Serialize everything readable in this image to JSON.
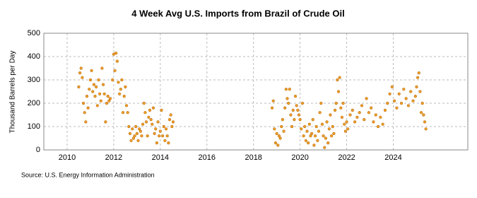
{
  "chart_data": {
    "type": "scatter",
    "title": "4 Week Avg U.S. Imports from Brazil of Crude Oil",
    "y_label": "Thousand Barrels per Day",
    "source": "Source: U.S. Energy Information Administration",
    "color": "#f0a030",
    "grid": true,
    "xlim": [
      2009,
      2027.2
    ],
    "xticks": [
      2010,
      2012,
      2014,
      2016,
      2018,
      2020,
      2022,
      2024
    ],
    "ylim": [
      0,
      500
    ],
    "yticks": [
      0,
      100,
      200,
      300,
      400,
      500
    ],
    "x": [
      2010.5,
      2010.55,
      2010.6,
      2010.65,
      2010.7,
      2010.75,
      2010.8,
      2010.85,
      2010.9,
      2010.95,
      2011.0,
      2011.05,
      2011.1,
      2011.15,
      2011.2,
      2011.25,
      2011.3,
      2011.35,
      2011.4,
      2011.45,
      2011.5,
      2011.55,
      2011.6,
      2011.65,
      2011.7,
      2011.75,
      2011.8,
      2011.85,
      2011.95,
      2012.0,
      2012.05,
      2012.1,
      2012.15,
      2012.2,
      2012.25,
      2012.3,
      2012.35,
      2012.4,
      2012.45,
      2012.5,
      2012.55,
      2012.6,
      2012.65,
      2012.7,
      2012.75,
      2012.8,
      2012.85,
      2012.9,
      2012.95,
      2013.0,
      2013.05,
      2013.1,
      2013.15,
      2013.2,
      2013.25,
      2013.3,
      2013.35,
      2013.4,
      2013.45,
      2013.5,
      2013.55,
      2013.6,
      2013.65,
      2013.7,
      2013.75,
      2013.8,
      2013.85,
      2013.9,
      2013.95,
      2014.0,
      2014.05,
      2014.1,
      2014.15,
      2014.2,
      2014.25,
      2014.3,
      2014.35,
      2014.4,
      2014.45,
      2014.5,
      2014.55,
      2018.8,
      2018.85,
      2018.9,
      2018.95,
      2019.0,
      2019.05,
      2019.1,
      2019.15,
      2019.2,
      2019.25,
      2019.3,
      2019.35,
      2019.4,
      2019.45,
      2019.5,
      2019.55,
      2019.6,
      2019.65,
      2019.7,
      2019.75,
      2019.8,
      2019.85,
      2019.9,
      2019.95,
      2020.0,
      2020.05,
      2020.1,
      2020.15,
      2020.2,
      2020.25,
      2020.3,
      2020.35,
      2020.4,
      2020.45,
      2020.5,
      2020.55,
      2020.6,
      2020.65,
      2020.7,
      2020.75,
      2020.8,
      2020.85,
      2020.9,
      2020.95,
      2021.0,
      2021.05,
      2021.1,
      2021.15,
      2021.2,
      2021.25,
      2021.3,
      2021.35,
      2021.4,
      2021.45,
      2021.5,
      2021.55,
      2021.6,
      2021.65,
      2021.7,
      2021.75,
      2021.8,
      2021.85,
      2021.9,
      2021.95,
      2022.0,
      2022.05,
      2022.15,
      2022.25,
      2022.35,
      2022.45,
      2022.55,
      2022.65,
      2022.75,
      2022.85,
      2022.95,
      2023.05,
      2023.15,
      2023.25,
      2023.35,
      2023.45,
      2023.55,
      2023.65,
      2023.75,
      2023.85,
      2023.95,
      2024.05,
      2024.15,
      2024.25,
      2024.35,
      2024.45,
      2024.55,
      2024.65,
      2024.75,
      2024.85,
      2024.95,
      2025.0,
      2025.05,
      2025.1,
      2025.15,
      2025.2,
      2025.25,
      2025.3,
      2025.35,
      2025.4
    ],
    "values": [
      270,
      330,
      350,
      310,
      200,
      160,
      120,
      230,
      180,
      260,
      300,
      340,
      250,
      280,
      230,
      270,
      190,
      300,
      240,
      210,
      350,
      280,
      240,
      120,
      200,
      230,
      210,
      220,
      300,
      410,
      340,
      415,
      380,
      290,
      240,
      260,
      300,
      160,
      230,
      270,
      190,
      160,
      100,
      70,
      40,
      90,
      50,
      60,
      100,
      70,
      40,
      90,
      80,
      60,
      110,
      200,
      160,
      120,
      60,
      140,
      170,
      130,
      110,
      180,
      70,
      90,
      30,
      120,
      60,
      80,
      170,
      60,
      100,
      40,
      90,
      60,
      30,
      130,
      150,
      100,
      120,
      180,
      210,
      90,
      30,
      70,
      20,
      60,
      50,
      100,
      130,
      80,
      180,
      260,
      220,
      200,
      260,
      150,
      100,
      170,
      130,
      230,
      190,
      170,
      150,
      130,
      90,
      200,
      60,
      100,
      40,
      80,
      30,
      110,
      60,
      70,
      130,
      20,
      60,
      100,
      40,
      80,
      160,
      200,
      110,
      60,
      10,
      50,
      120,
      30,
      90,
      150,
      60,
      100,
      70,
      170,
      200,
      300,
      250,
      310,
      180,
      140,
      200,
      110,
      80,
      120,
      90,
      150,
      170,
      120,
      140,
      160,
      190,
      130,
      220,
      160,
      180,
      120,
      150,
      100,
      140,
      110,
      170,
      200,
      240,
      270,
      210,
      180,
      240,
      200,
      260,
      220,
      190,
      250,
      210,
      230,
      270,
      310,
      330,
      250,
      160,
      200,
      150,
      120,
      90
    ]
  }
}
